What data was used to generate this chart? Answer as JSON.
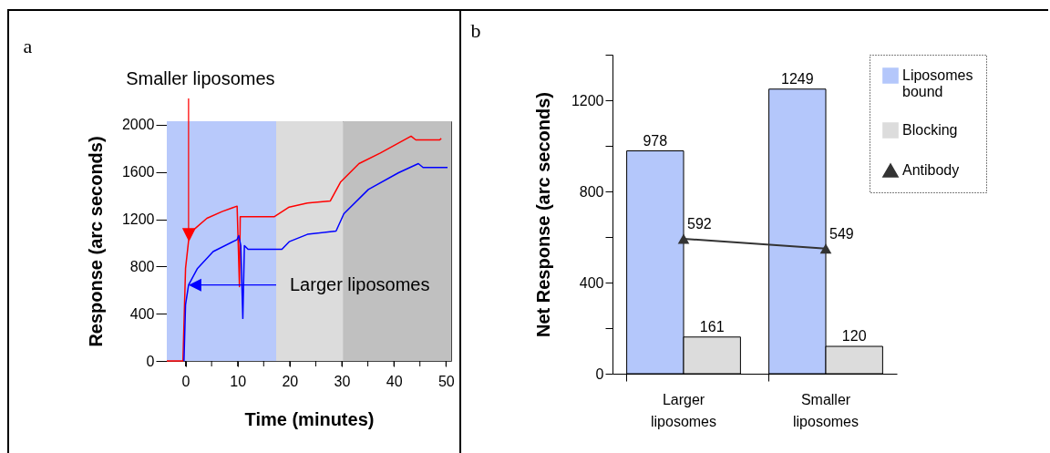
{
  "chart_data": [
    {
      "type": "line",
      "title": "a",
      "xlabel": "Time (minutes)",
      "ylabel": "Response (arc seconds)",
      "xlim": [
        -3.6,
        51
      ],
      "xticks": [
        0,
        {
          "value": 5,
          "label": null
        },
        10,
        {
          "value": 15,
          "label": null
        },
        20,
        {
          "value": 25,
          "label": null
        },
        30,
        {
          "value": 35,
          "label": null
        },
        40,
        {
          "value": 45,
          "label": null
        },
        50
      ],
      "ylim": [
        0,
        2030
      ],
      "yticks": [
        0,
        400,
        800,
        1200,
        1600,
        2000
      ],
      "legend": false,
      "grid": false,
      "bands": [
        {
          "axis": "x",
          "from": -3.6,
          "to": 17.4,
          "color": "#b8c9fb"
        },
        {
          "axis": "x",
          "from": 17.4,
          "to": 30.2,
          "color": "#dcdcdc"
        },
        {
          "axis": "x",
          "from": 30.2,
          "to": 51,
          "color": "#c0c0c0"
        }
      ],
      "annotations": [
        "Smaller liposomes",
        "Larger liposomes"
      ],
      "series": [
        {
          "color": "#ff0000",
          "x": [
            -3.6,
            -0.5,
            0,
            0.58,
            1.75,
            4.1,
            7.0,
            9.9,
            10.35,
            10.5,
            17.0,
            19.9,
            23.4,
            27.8,
            29.8,
            33.3,
            37.4,
            43.3,
            44.2,
            48.8,
            49.1
          ],
          "values": [
            0,
            0,
            784,
            1016,
            1118,
            1208,
            1265,
            1311,
            630,
            1221,
            1221,
            1303,
            1337,
            1355,
            1517,
            1671,
            1761,
            1903,
            1872,
            1872,
            1884
          ]
        },
        {
          "color": "#0000ff",
          "x": [
            -0.3,
            0,
            0.58,
            2.3,
            5.3,
            9.9,
            10.2,
            10.6,
            11.0,
            11.3,
            12.0,
            18.5,
            19.9,
            23.4,
            28.9,
            30.4,
            35.1,
            40.9,
            44.7,
            45.6,
            50.3
          ],
          "values": [
            0,
            476,
            643,
            784,
            926,
            1028,
            1062,
            980,
            360,
            977,
            946,
            946,
            1010,
            1072,
            1100,
            1247,
            1452,
            1594,
            1671,
            1638,
            1638
          ]
        }
      ]
    },
    {
      "type": "bar",
      "title": "b",
      "ylabel": "Net Response (arc seconds)",
      "categories": [
        "Larger liposomes",
        "Smaller liposomes"
      ],
      "ylim": [
        0,
        1400
      ],
      "yticks": [
        0,
        {
          "value": 200,
          "label": null
        },
        400,
        {
          "value": 600,
          "label": null
        },
        800,
        {
          "value": 1000,
          "label": null
        },
        1200,
        {
          "value": 1400,
          "label": null
        }
      ],
      "legend": "top right",
      "data_labels": true,
      "grid": false,
      "marker": "triangle",
      "series": [
        {
          "name": "Liposomes bound",
          "color": "#b4c7fb",
          "values": [
            978,
            1249
          ]
        },
        {
          "name": "Blocking",
          "color": "#dcdcdc",
          "values": [
            161,
            120
          ]
        },
        {
          "name": "Antibody",
          "type": "line",
          "color": "#333333",
          "values": [
            592,
            549
          ]
        }
      ]
    }
  ]
}
